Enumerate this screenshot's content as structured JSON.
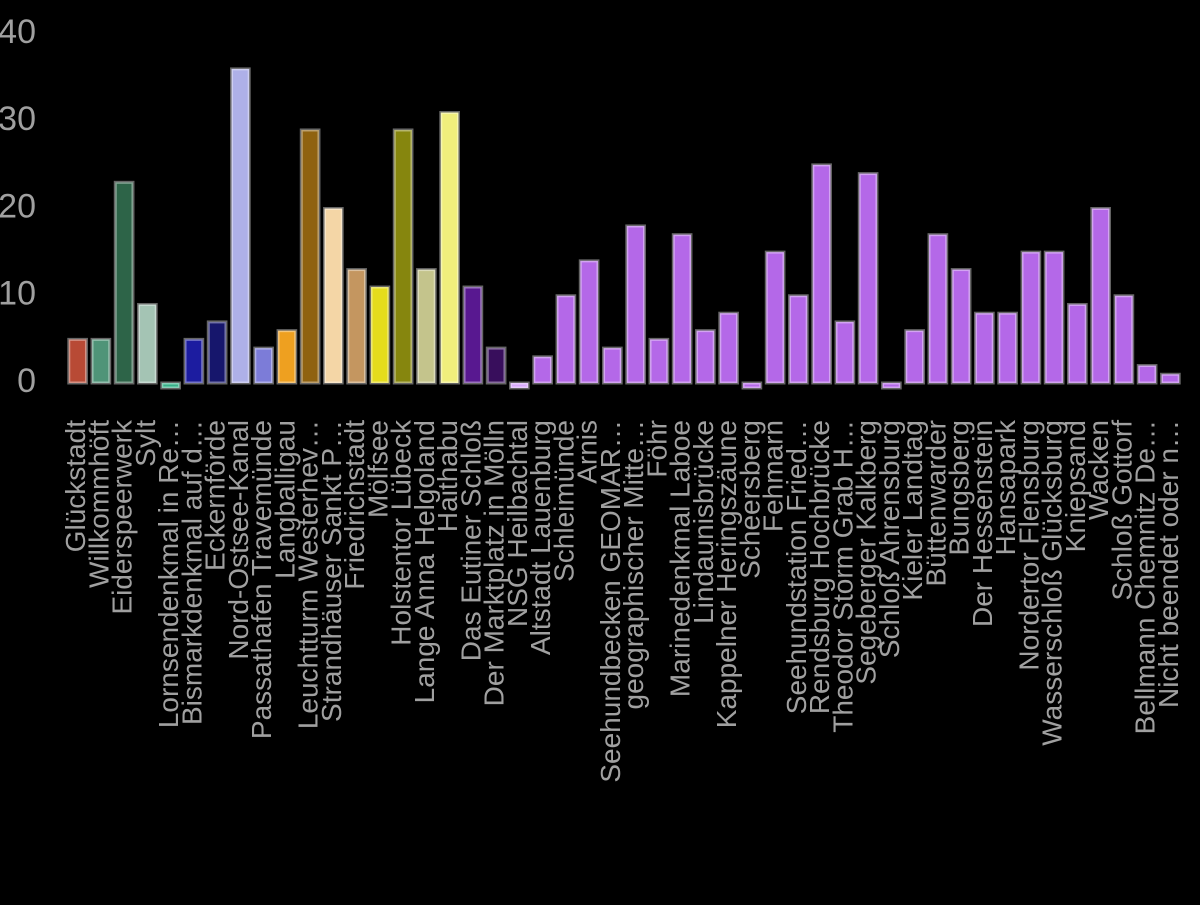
{
  "chart_data": {
    "type": "bar",
    "categories": [
      "Glückstadt",
      "Willkommhöft",
      "Eiderspeerwerk",
      "Sylt",
      "Lornsendenkmal in Re…",
      "Bismarkdenkmal auf d…",
      "Eckernförde",
      "Nord-Ostsee-Kanal",
      "Passathafen Travemünde",
      "Langballigau",
      "Leuchtturm Westerhev…",
      "Strandhäuser Sankt P…",
      "Friedrichstadt",
      "Mölfsee",
      "Holstentor Lübeck",
      "Lange Anna Helgoland",
      "Haithabu",
      "Das Eutiner Schloß",
      "Der Marktplatz in Mölln",
      "NSG Heilbachtal",
      "Altstadt Lauenburg",
      "Schleimünde",
      "Arnis",
      "Seehundbecken GEOMAR…",
      "geographischer Mitte…",
      "Föhr",
      "Marinedenkmal Laboe",
      "Lindaunisbrücke",
      "Kappelner Heringszäune",
      "Scheersberg",
      "Fehmarn",
      "Seehundstation Fried…",
      "Rendsburg Hochbrücke",
      "Theodor Storm Grab H…",
      "Segeberger Kalkberg",
      "Schloß Ahrensburg",
      "Kieler Landtag",
      "Büttenwarder",
      "Bungsberg",
      "Der Hessenstein",
      "Hansapark",
      "Nordertor Flensburg",
      "Wasserschloß Glücksburg",
      "Kniepsand",
      "Wacken",
      "Schloß Gottorf",
      "Bellmann Chemnitz De…",
      "Nicht beendet oder n…"
    ],
    "values": [
      5,
      5,
      23,
      9,
      0,
      5,
      7,
      36,
      4,
      6,
      29,
      20,
      13,
      11,
      29,
      13,
      31,
      11,
      4,
      0,
      3,
      10,
      14,
      4,
      18,
      5,
      17,
      6,
      8,
      0,
      15,
      10,
      25,
      7,
      24,
      0,
      6,
      17,
      13,
      8,
      8,
      15,
      15,
      9,
      20,
      10,
      2,
      1
    ],
    "colors": [
      "#b84a35",
      "#4f9478",
      "#2d6448",
      "#a4c4b4",
      "#36b088",
      "#1c1ca0",
      "#16166c",
      "#aeb0e8",
      "#7c7cd8",
      "#eea020",
      "#8f6210",
      "#f4d6a6",
      "#c49660",
      "#e4dc1c",
      "#86860e",
      "#c4c48c",
      "#f0ee7c",
      "#581890",
      "#380e5c",
      "#d8a8fc",
      "#b468e8",
      "#b468e8",
      "#b468e8",
      "#b468e8",
      "#b468e8",
      "#b468e8",
      "#b468e8",
      "#b468e8",
      "#b468e8",
      "#b468e8",
      "#b468e8",
      "#b468e8",
      "#b468e8",
      "#b468e8",
      "#b468e8",
      "#b468e8",
      "#b468e8",
      "#b468e8",
      "#b468e8",
      "#b468e8",
      "#b468e8",
      "#b468e8",
      "#b468e8",
      "#b468e8",
      "#b468e8",
      "#b468e8",
      "#b468e8",
      "#b468e8"
    ],
    "ylim": [
      0,
      40
    ],
    "yticks": [
      0,
      10,
      20,
      30,
      40
    ],
    "grid": false
  }
}
